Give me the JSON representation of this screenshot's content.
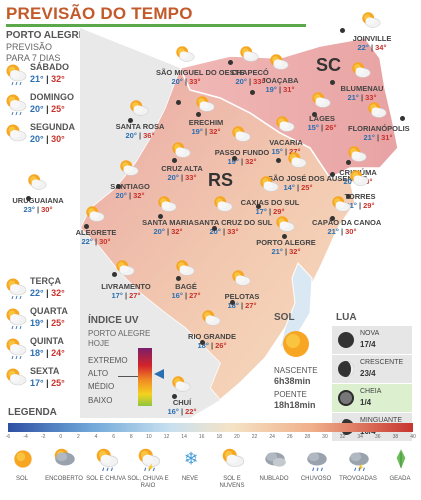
{
  "header": {
    "title": "PREVISÃO DO TEMPO"
  },
  "location": {
    "title": "PORTO ALEGRE",
    "subtitle_line1": "PREVISÃO",
    "subtitle_line2": "PARA 7 DIAS"
  },
  "forecast_top": [
    {
      "day": "SÁBADO",
      "min": "21°",
      "max": "32°",
      "icon": "sun-cloud-rain-icon"
    },
    {
      "day": "DOMINGO",
      "min": "20°",
      "max": "25°",
      "icon": "sun-cloud-rain-icon"
    },
    {
      "day": "SEGUNDA",
      "min": "20°",
      "max": "30°",
      "icon": "sun-cloud-icon"
    }
  ],
  "forecast_bottom": [
    {
      "day": "TERÇA",
      "min": "22°",
      "max": "32°",
      "icon": "sun-cloud-rain-icon"
    },
    {
      "day": "QUARTA",
      "min": "19°",
      "max": "25°",
      "icon": "sun-cloud-rain-icon"
    },
    {
      "day": "QUINTA",
      "min": "18°",
      "max": "24°",
      "icon": "sun-cloud-rain-icon"
    },
    {
      "day": "SEXTA",
      "min": "17°",
      "max": "25°",
      "icon": "sun-cloud-icon"
    }
  ],
  "regions": {
    "rs": "RS",
    "sc": "SC"
  },
  "cities": [
    {
      "name": "JOINVILLE",
      "min": "22°",
      "max": "34°"
    },
    {
      "name": "CHAPECÓ",
      "min": "20°",
      "max": "33°"
    },
    {
      "name": "SÃO MIGUEL DO OESTE",
      "min": "20°",
      "max": "33°"
    },
    {
      "name": "JOAÇABA",
      "min": "19°",
      "max": "31°"
    },
    {
      "name": "BLUMENAU",
      "min": "21°",
      "max": "33°"
    },
    {
      "name": "ERECHIM",
      "min": "19°",
      "max": "32°"
    },
    {
      "name": "SANTA ROSA",
      "min": "20°",
      "max": "36°"
    },
    {
      "name": "LAGES",
      "min": "15°",
      "max": "26°"
    },
    {
      "name": "FLORIANÓPOLIS",
      "min": "21°",
      "max": "31°"
    },
    {
      "name": "PASSO FUNDO",
      "min": "19°",
      "max": "32°"
    },
    {
      "name": "VACARIA",
      "min": "15°",
      "max": "27°"
    },
    {
      "name": "CRUZ ALTA",
      "min": "20°",
      "max": "33°"
    },
    {
      "name": "SANTIAGO",
      "min": "20°",
      "max": "32°"
    },
    {
      "name": "SÃO JOSÉ DOS AUSENTES",
      "min": "14°",
      "max": "25°"
    },
    {
      "name": "CRICIÚMA",
      "min": "20°",
      "max": "30°"
    },
    {
      "name": "URUGUAIANA",
      "min": "23°",
      "max": "30°"
    },
    {
      "name": "TORRES",
      "min": "21°",
      "max": "29°"
    },
    {
      "name": "CAXIAS DO SUL",
      "min": "17°",
      "max": "29°"
    },
    {
      "name": "SANTA MARIA",
      "min": "20°",
      "max": "32°"
    },
    {
      "name": "SANTA CRUZ DO SUL",
      "min": "20°",
      "max": "33°"
    },
    {
      "name": "ALEGRETE",
      "min": "22°",
      "max": "30°"
    },
    {
      "name": "CAPÃO DA CANOA",
      "min": "21°",
      "max": "30°"
    },
    {
      "name": "PORTO ALEGRE",
      "min": "21°",
      "max": "32°"
    },
    {
      "name": "LIVRAMENTO",
      "min": "17°",
      "max": "27°"
    },
    {
      "name": "BAGÉ",
      "min": "16°",
      "max": "27°"
    },
    {
      "name": "PELOTAS",
      "min": "18°",
      "max": "27°"
    },
    {
      "name": "RIO GRANDE",
      "min": "18°",
      "max": "26°"
    },
    {
      "name": "CHUÍ",
      "min": "16°",
      "max": "22°"
    }
  ],
  "uv": {
    "title": "ÍNDICE UV",
    "subtitle_line1": "PORTO ALEGRE",
    "subtitle_line2": "HOJE",
    "levels": [
      "EXTREMO",
      "ALTO",
      "MÉDIO",
      "BAIXO"
    ],
    "current_level": "ALTO",
    "colors": [
      "#7a1f6b",
      "#d2232a",
      "#f08a24",
      "#f4d21f",
      "#8cc63f"
    ]
  },
  "sun": {
    "title": "SOL",
    "sunrise_label": "NASCENTE",
    "sunrise_time": "6h38min",
    "sunset_label": "POENTE",
    "sunset_time": "18h18min"
  },
  "moon": {
    "title": "LUA",
    "phases": [
      {
        "name": "NOVA",
        "date": "17/4"
      },
      {
        "name": "CRESCENTE",
        "date": "23/4"
      },
      {
        "name": "CHEIA",
        "date": "1/4"
      },
      {
        "name": "MINGUANTE",
        "date": "10/4"
      }
    ]
  },
  "legend": {
    "title": "LEGENDA",
    "scale": [
      "-6",
      "-4",
      "-2",
      "0",
      "2",
      "4",
      "6",
      "8",
      "10",
      "12",
      "14",
      "16",
      "18",
      "20",
      "22",
      "24",
      "26",
      "28",
      "30",
      "32",
      "34",
      "36",
      "38",
      "40"
    ],
    "items": [
      {
        "label": "SOL",
        "icon": "sun-icon"
      },
      {
        "label": "ENCOBERTO",
        "icon": "overcast-icon"
      },
      {
        "label": "SOL E CHUVA",
        "icon": "sun-rain-icon"
      },
      {
        "label": "SOL, CHUVA E RAIO",
        "icon": "sun-rain-lightning-icon"
      },
      {
        "label": "NEVE",
        "icon": "snow-icon"
      },
      {
        "label": "SOL E NUVENS",
        "icon": "sun-cloud-icon"
      },
      {
        "label": "NUBLADO",
        "icon": "cloudy-icon"
      },
      {
        "label": "CHUVOSO",
        "icon": "rain-icon"
      },
      {
        "label": "TROVOADAS",
        "icon": "thunderstorm-icon"
      },
      {
        "label": "GEADA",
        "icon": "frost-icon"
      }
    ]
  }
}
